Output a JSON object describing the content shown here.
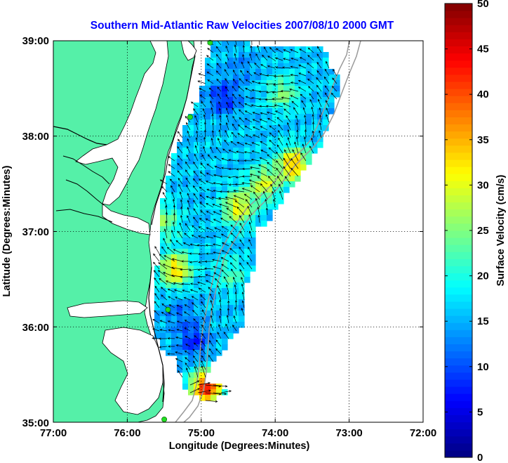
{
  "chart_data": {
    "type": "heatmap",
    "title": "Southern Mid-Atlantic Raw Velocities 2007/08/10 2000 GMT",
    "xlabel": "Longitude (Degrees:Minutes)",
    "ylabel": "Latitude (Degrees:Minutes)",
    "xlim": [
      -77,
      -72
    ],
    "ylim": [
      35,
      39
    ],
    "x_ticks": [
      -77,
      -76,
      -75,
      -74,
      -73,
      -72
    ],
    "x_tick_labels": [
      "77:00",
      "76:00",
      "75:00",
      "74:00",
      "73:00",
      "72:00"
    ],
    "y_ticks": [
      35,
      36,
      37,
      38,
      39
    ],
    "y_tick_labels": [
      "35:00",
      "36:00",
      "37:00",
      "38:00",
      "39:00"
    ],
    "grid": true,
    "colorbar": {
      "label": "Surface Velocity (cm/s)",
      "range": [
        0,
        50
      ],
      "ticks": [
        0,
        5,
        10,
        15,
        20,
        25,
        30,
        35,
        40,
        45,
        50
      ],
      "colormap": "jet"
    },
    "colors": {
      "land": "#55f0a8",
      "title": "#0000ff",
      "coast": "#000000",
      "bathymetry": "#9a9a9a",
      "station": "#22dd22"
    },
    "stations": [
      {
        "lon": -74.88,
        "lat": 38.98
      },
      {
        "lon": -75.15,
        "lat": 38.2
      },
      {
        "lon": -75.45,
        "lat": 36.18
      },
      {
        "lon": -75.5,
        "lat": 35.03
      }
    ],
    "hotspots": [
      {
        "lon": -75.35,
        "lat": 36.6,
        "speed": 33
      },
      {
        "lon": -74.5,
        "lat": 37.25,
        "speed": 31
      },
      {
        "lon": -74.15,
        "lat": 37.5,
        "speed": 29
      },
      {
        "lon": -73.9,
        "lat": 38.45,
        "speed": 25
      },
      {
        "lon": -73.75,
        "lat": 37.7,
        "speed": 35
      },
      {
        "lon": -74.93,
        "lat": 35.36,
        "speed": 42
      },
      {
        "lon": -75.5,
        "lat": 37.1,
        "speed": 25
      },
      {
        "lon": -74.6,
        "lat": 36.55,
        "speed": 22
      }
    ],
    "coldspots": [
      {
        "lon": -74.7,
        "lat": 38.4,
        "speed": 8
      },
      {
        "lon": -75.1,
        "lat": 35.85,
        "speed": 8
      },
      {
        "lon": -75.3,
        "lat": 36.15,
        "speed": 12
      },
      {
        "lon": -74.45,
        "lat": 38.72,
        "speed": 13
      }
    ],
    "base_speed": 16
  }
}
